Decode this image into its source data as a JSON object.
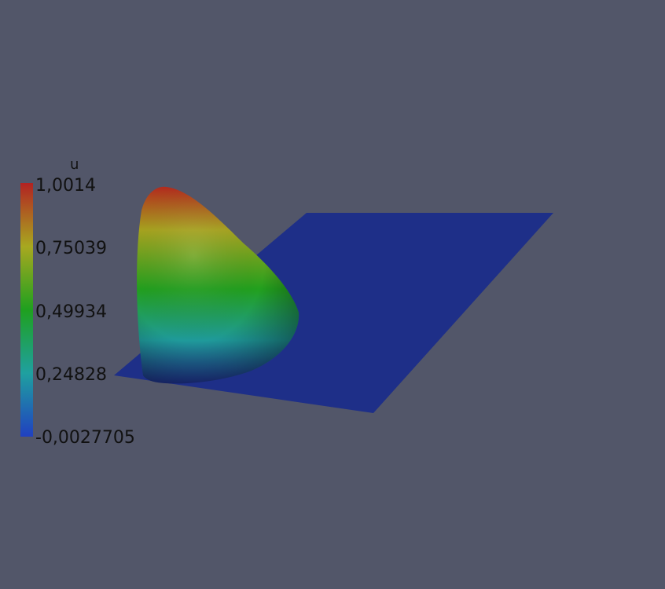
{
  "viewer": {
    "background_color": "#525669",
    "plane_color": "#1e2f88"
  },
  "scalar_bar": {
    "title": "u",
    "labels": [
      "1,0014",
      "0,75039",
      "0,49934",
      "0,24828",
      "-0,0027705"
    ],
    "colormap": [
      "#b22222",
      "#a8a820",
      "#1fa01f",
      "#1fa0a0",
      "#2040c0"
    ]
  }
}
